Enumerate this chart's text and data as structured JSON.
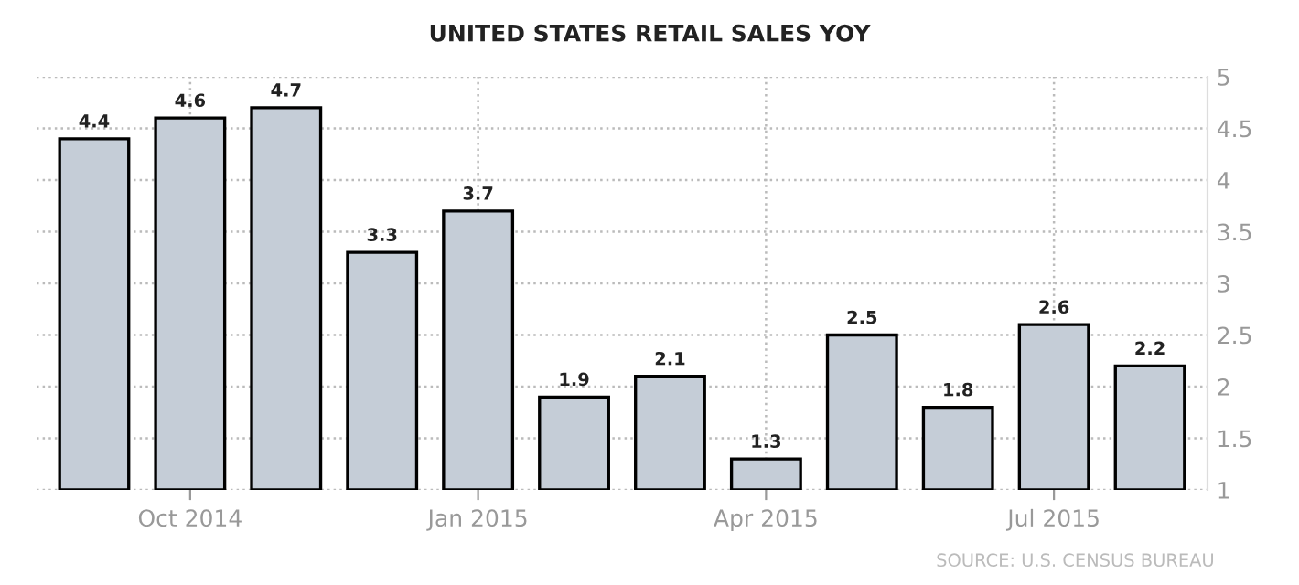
{
  "chart_data": {
    "type": "bar",
    "title": "UNITED STATES RETAIL SALES YOY",
    "categories": [
      null,
      "Oct 2014",
      null,
      null,
      "Jan 2015",
      null,
      null,
      "Apr 2015",
      null,
      null,
      "Jul 2015",
      null
    ],
    "values": [
      4.4,
      4.6,
      4.7,
      3.3,
      3.7,
      1.9,
      2.1,
      1.3,
      2.5,
      1.8,
      2.6,
      2.2
    ],
    "color": "#c5cdd7",
    "ylim": [
      1,
      5
    ],
    "yticks": [
      1,
      1.5,
      2,
      2.5,
      3,
      3.5,
      4,
      4.5,
      5
    ],
    "grid": true,
    "data_labels": true,
    "legend": false,
    "annotations": [
      "SOURCE: U.S. CENSUS BUREAU"
    ]
  }
}
